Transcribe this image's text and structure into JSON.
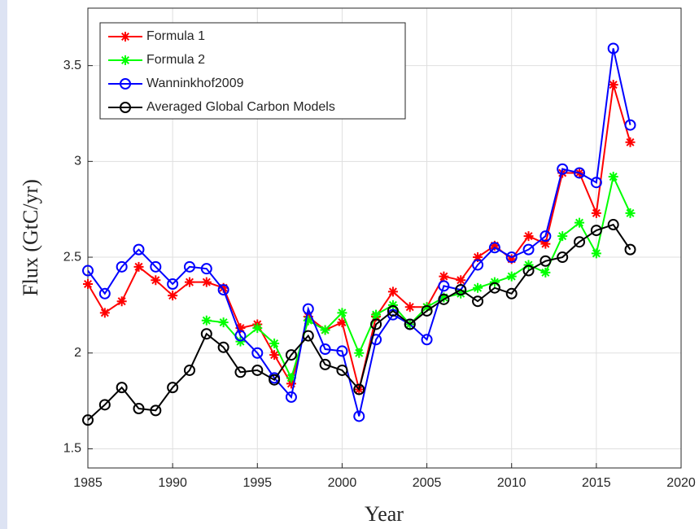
{
  "chart_data": {
    "type": "line",
    "xlabel": "Year",
    "ylabel": "Flux (GtC/yr)",
    "x": [
      1985,
      1986,
      1987,
      1988,
      1989,
      1990,
      1991,
      1992,
      1993,
      1994,
      1995,
      1996,
      1997,
      1998,
      1999,
      2000,
      2001,
      2002,
      2003,
      2004,
      2005,
      2006,
      2007,
      2008,
      2009,
      2010,
      2011,
      2012,
      2013,
      2014,
      2015,
      2016,
      2017
    ],
    "series": [
      {
        "name": "Formula 1",
        "color": "#ff0000",
        "marker": "star",
        "values": [
          2.36,
          2.21,
          2.27,
          2.45,
          2.38,
          2.3,
          2.37,
          2.37,
          2.34,
          2.13,
          2.15,
          1.99,
          1.84,
          2.19,
          2.12,
          2.16,
          1.81,
          2.19,
          2.32,
          2.24,
          2.24,
          2.4,
          2.38,
          2.5,
          2.56,
          2.49,
          2.61,
          2.57,
          2.94,
          2.94,
          2.73,
          3.4,
          3.1
        ]
      },
      {
        "name": "Formula 2",
        "color": "#00ff00",
        "marker": "star",
        "values": [
          null,
          null,
          null,
          null,
          null,
          null,
          null,
          2.17,
          2.16,
          2.06,
          2.13,
          2.05,
          1.87,
          2.17,
          2.12,
          2.21,
          2.0,
          2.2,
          2.25,
          2.15,
          2.24,
          2.29,
          2.31,
          2.34,
          2.37,
          2.4,
          2.46,
          2.42,
          2.61,
          2.68,
          2.52,
          2.92,
          2.73
        ]
      },
      {
        "name": "Wanninkhof2009",
        "color": "#0000ff",
        "marker": "circle",
        "values": [
          2.43,
          2.31,
          2.45,
          2.54,
          2.45,
          2.36,
          2.45,
          2.44,
          2.33,
          2.09,
          2.0,
          1.87,
          1.77,
          2.23,
          2.02,
          2.01,
          1.67,
          2.07,
          2.2,
          2.15,
          2.07,
          2.35,
          2.33,
          2.46,
          2.55,
          2.5,
          2.54,
          2.61,
          2.96,
          2.94,
          2.89,
          3.59,
          3.19
        ]
      },
      {
        "name": "Averaged Global Carbon Models",
        "color": "#000000",
        "marker": "circle",
        "values": [
          1.65,
          1.73,
          1.82,
          1.71,
          1.7,
          1.82,
          1.91,
          2.1,
          2.03,
          1.9,
          1.91,
          1.86,
          1.99,
          2.09,
          1.94,
          1.91,
          1.81,
          2.15,
          2.22,
          2.15,
          2.22,
          2.28,
          2.33,
          2.27,
          2.34,
          2.31,
          2.43,
          2.48,
          2.5,
          2.58,
          2.64,
          2.67,
          2.54
        ]
      }
    ],
    "xlim": [
      1985,
      2020
    ],
    "xticks": [
      1985,
      1990,
      1995,
      2000,
      2005,
      2010,
      2015,
      2020
    ],
    "ylim": [
      1.4,
      3.8
    ],
    "yticks": [
      1.5,
      2,
      2.5,
      3,
      3.5
    ],
    "grid": true,
    "legend": "upper-left"
  }
}
